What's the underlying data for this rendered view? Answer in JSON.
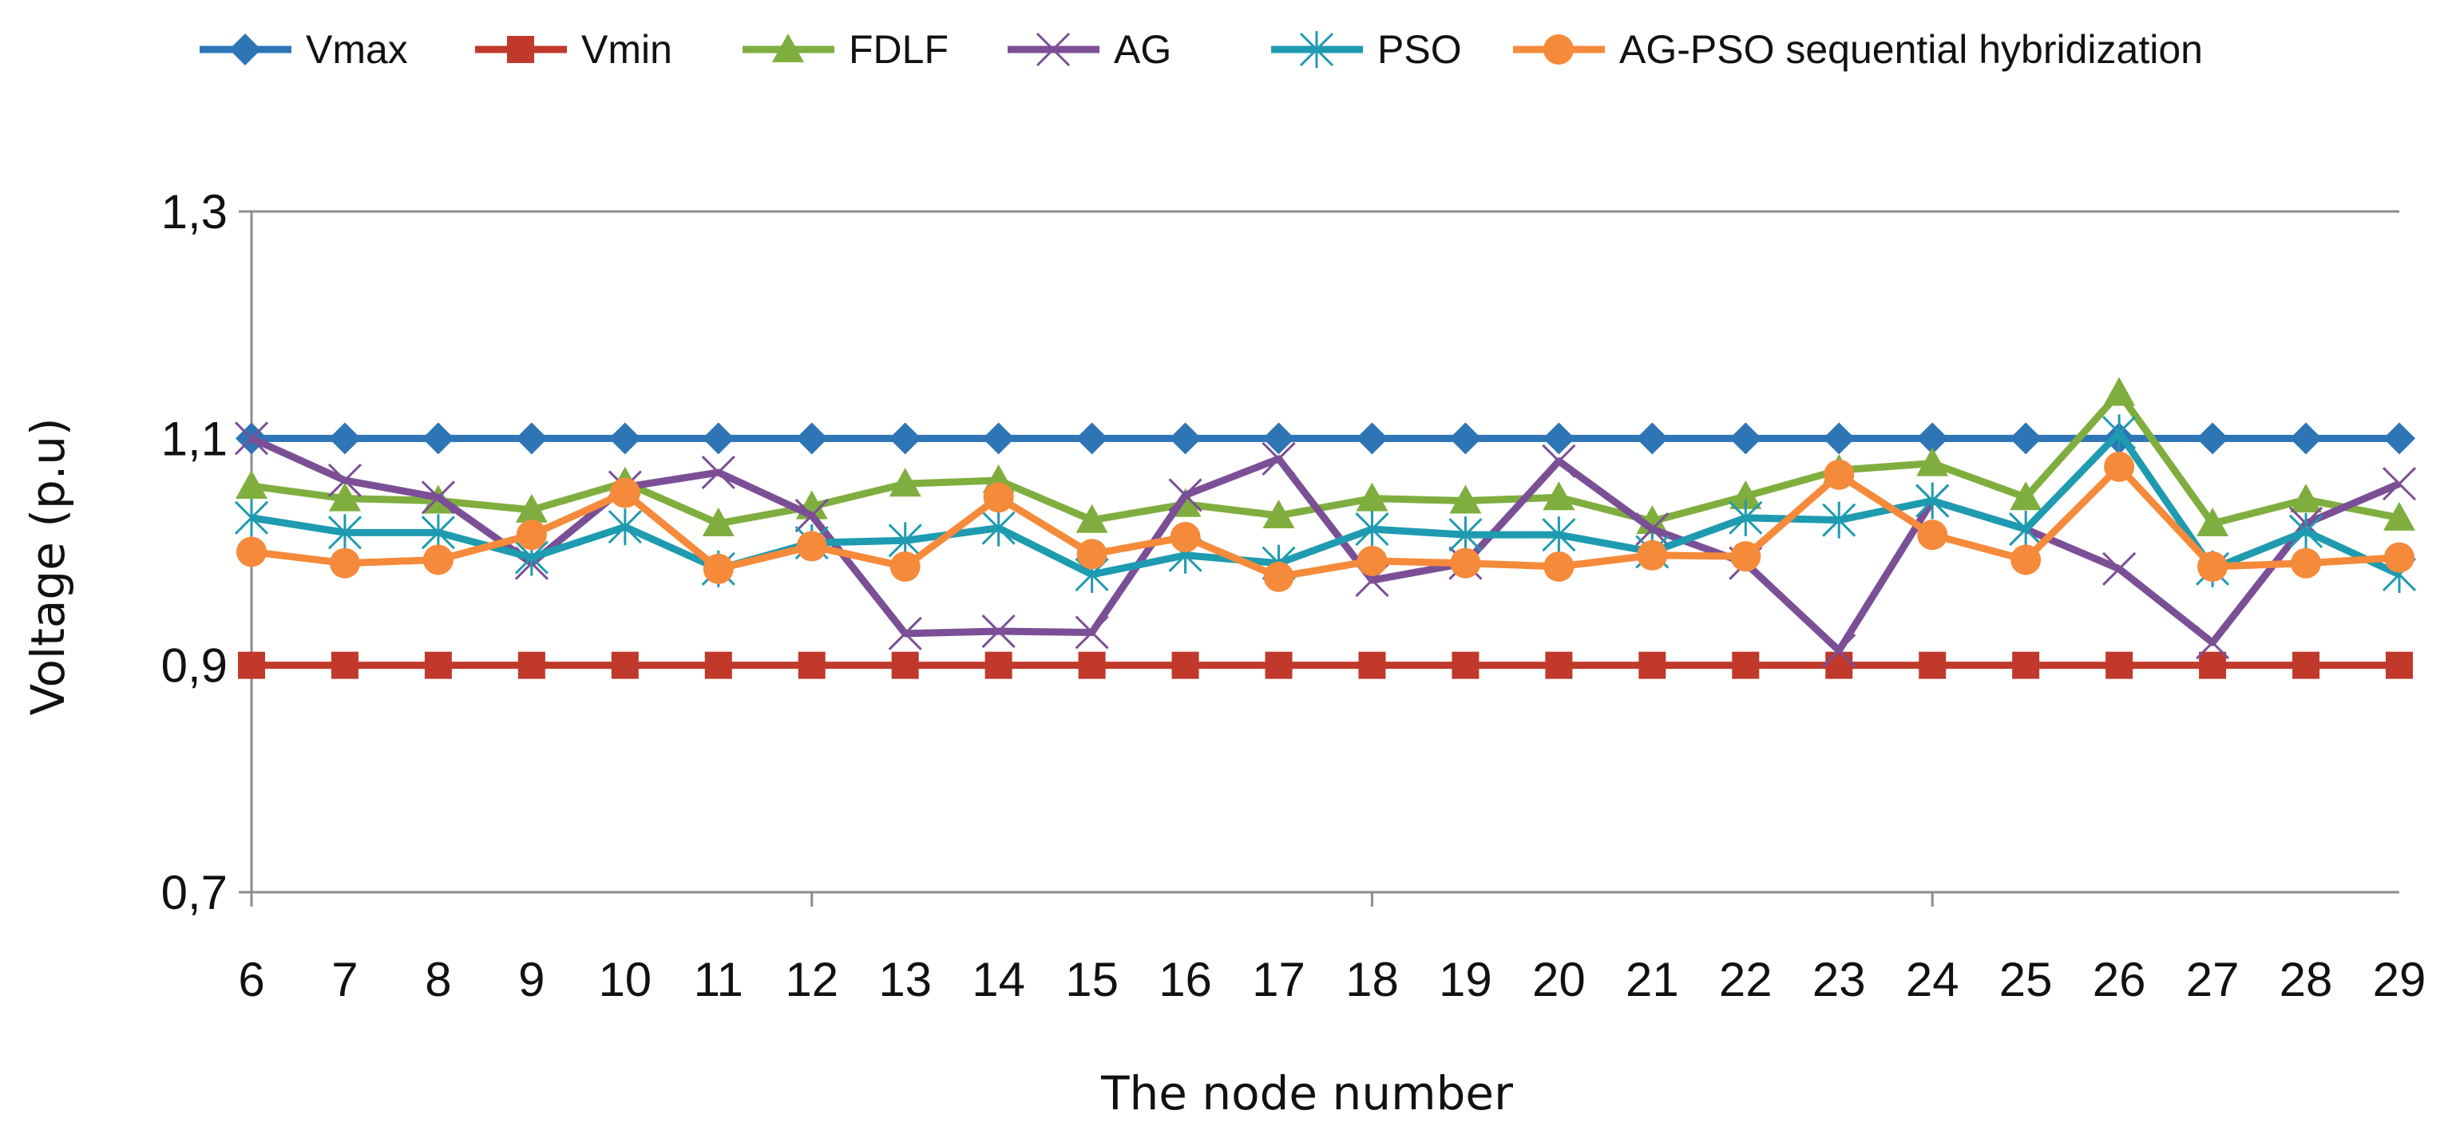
{
  "chart_data": {
    "type": "line",
    "title": "",
    "xlabel": "The node number",
    "ylabel": "Voltage (p.u)",
    "ylim": [
      0.7,
      1.3
    ],
    "yticks": [
      0.7,
      0.9,
      1.1,
      1.3
    ],
    "ytick_labels": [
      "0,7",
      "0,9",
      "1,1",
      "1,3"
    ],
    "grid": "horizontal",
    "legend_position": "top",
    "categories": [
      "6",
      "7",
      "8",
      "9",
      "10",
      "11",
      "12",
      "13",
      "14",
      "15",
      "16",
      "17",
      "18",
      "19",
      "20",
      "21",
      "22",
      "23",
      "24",
      "25",
      "26",
      "27",
      "28",
      "29"
    ],
    "series": [
      {
        "name": "Vmax",
        "color": "#2e75b6",
        "marker": "diamond",
        "values": [
          1.1,
          1.1,
          1.1,
          1.1,
          1.1,
          1.1,
          1.1,
          1.1,
          1.1,
          1.1,
          1.1,
          1.1,
          1.1,
          1.1,
          1.1,
          1.1,
          1.1,
          1.1,
          1.1,
          1.1,
          1.1,
          1.1,
          1.1,
          1.1
        ]
      },
      {
        "name": "Vmin",
        "color": "#c0392b",
        "marker": "square",
        "values": [
          0.9,
          0.9,
          0.9,
          0.9,
          0.9,
          0.9,
          0.9,
          0.9,
          0.9,
          0.9,
          0.9,
          0.9,
          0.9,
          0.9,
          0.9,
          0.9,
          0.9,
          0.9,
          0.9,
          0.9,
          0.9,
          0.9,
          0.9,
          0.9
        ]
      },
      {
        "name": "FDLF",
        "color": "#7fae3f",
        "marker": "triangle",
        "values": [
          1.058,
          1.047,
          1.045,
          1.037,
          1.061,
          1.025,
          1.04,
          1.06,
          1.063,
          1.028,
          1.042,
          1.032,
          1.047,
          1.045,
          1.048,
          1.027,
          1.049,
          1.072,
          1.078,
          1.048,
          1.14,
          1.025,
          1.046,
          1.03
        ]
      },
      {
        "name": "AG",
        "color": "#7b4f96",
        "marker": "x",
        "values": [
          1.1,
          1.063,
          1.048,
          0.99,
          1.057,
          1.07,
          1.032,
          0.928,
          0.93,
          0.929,
          1.05,
          1.082,
          0.975,
          0.99,
          1.08,
          1.02,
          0.99,
          0.913,
          1.045,
          1.02,
          0.985,
          0.92,
          1.025,
          1.06
        ]
      },
      {
        "name": "PSO",
        "color": "#1e9bb0",
        "marker": "asterisk",
        "values": [
          1.03,
          1.017,
          1.017,
          0.995,
          1.022,
          0.985,
          1.008,
          1.01,
          1.021,
          0.98,
          0.997,
          0.99,
          1.02,
          1.015,
          1.015,
          1.0,
          1.03,
          1.028,
          1.045,
          1.02,
          1.105,
          0.985,
          1.018,
          0.98
        ]
      },
      {
        "name": "AG-PSO sequential hybridization",
        "color": "#f58a3a",
        "marker": "circle",
        "values": [
          1.0,
          0.99,
          0.993,
          1.015,
          1.052,
          0.985,
          1.005,
          0.987,
          1.048,
          0.998,
          1.013,
          0.978,
          0.992,
          0.99,
          0.987,
          0.997,
          0.996,
          1.068,
          1.015,
          0.993,
          1.075,
          0.987,
          0.99,
          0.995
        ]
      }
    ]
  }
}
